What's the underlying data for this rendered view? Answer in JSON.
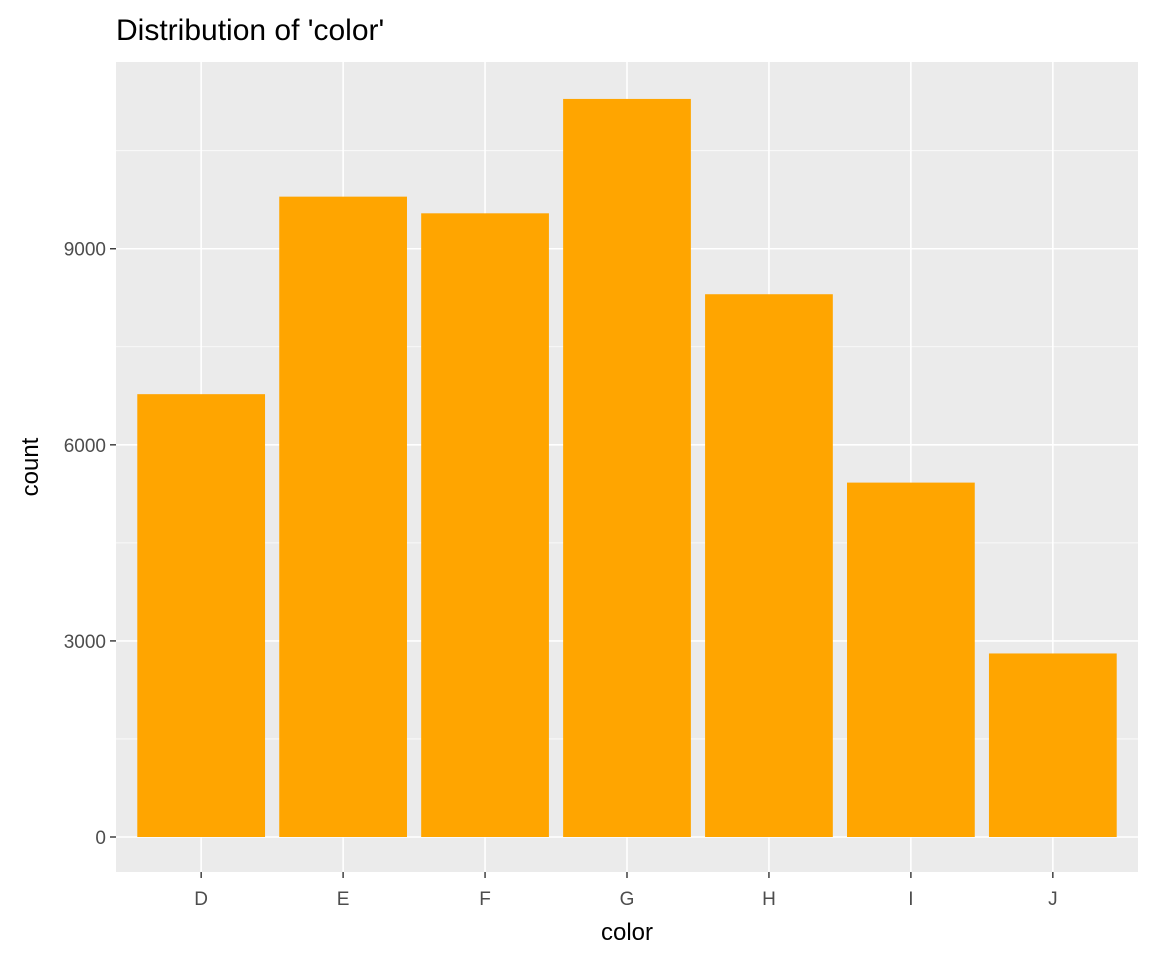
{
  "chart_data": {
    "type": "bar",
    "title": "Distribution of 'color'",
    "xlabel": "color",
    "ylabel": "count",
    "categories": [
      "D",
      "E",
      "F",
      "G",
      "H",
      "I",
      "J"
    ],
    "values": [
      6775,
      9797,
      9542,
      11292,
      8304,
      5422,
      2808
    ],
    "ylim": [
      0,
      11857
    ],
    "yticks": [
      0,
      3000,
      6000,
      9000
    ],
    "ytick_labels": [
      "0",
      "3000",
      "6000",
      "9000"
    ],
    "grid": true,
    "legend": "none",
    "colors": {
      "bar": "#FFA500",
      "panel": "#EBEBEB",
      "grid": "#FFFFFF",
      "tick_text": "#4D4D4D",
      "tick_mark": "#333333"
    }
  }
}
